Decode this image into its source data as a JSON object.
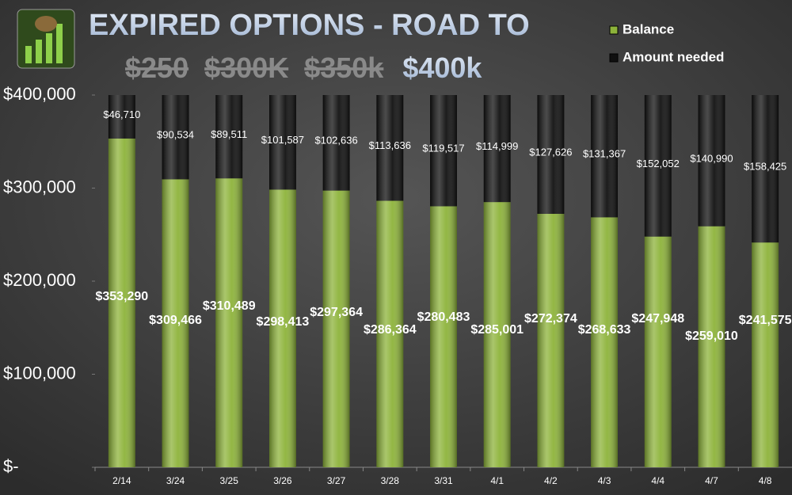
{
  "chart_data": {
    "type": "stacked_bar",
    "title": "EXPIRED OPTIONS - ROAD TO",
    "struck_targets": [
      "$250",
      "$300K",
      "$350k"
    ],
    "target": "$400k",
    "categories": [
      "2/14",
      "3/24",
      "3/25",
      "3/26",
      "3/27",
      "3/28",
      "3/31",
      "4/1",
      "4/2",
      "4/3",
      "4/4",
      "4/7",
      "4/8"
    ],
    "series": [
      {
        "name": "Balance",
        "color": "#8db33a",
        "values": [
          353290,
          309466,
          310489,
          298413,
          297364,
          286364,
          280483,
          285001,
          272374,
          268633,
          247948,
          259010,
          241575
        ],
        "value_labels": [
          "$353,290",
          "$309,466",
          "$310,489",
          "$298,413",
          "$297,364",
          "$286,364",
          "$280,483",
          "$285,001",
          "$272,374",
          "$268,633",
          "$247,948",
          "$259,010",
          "$241,575"
        ]
      },
      {
        "name": "Amount needed",
        "color": "#101010",
        "values": [
          46710,
          90534,
          89511,
          101587,
          102636,
          113636,
          119517,
          114999,
          127626,
          131367,
          152052,
          140990,
          158425
        ],
        "value_labels": [
          "$46,710",
          "$90,534",
          "$89,511",
          "$101,587",
          "$102,636",
          "$113,636",
          "$119,517",
          "$114,999",
          "$127,626",
          "$131,367",
          "$152,052",
          "$140,990",
          "$158,425"
        ]
      }
    ],
    "ylim": [
      0,
      400000
    ],
    "yticks": [
      {
        "value": 0,
        "label": "$-"
      },
      {
        "value": 100000,
        "label": "$100,000"
      },
      {
        "value": 200000,
        "label": "$200,000"
      },
      {
        "value": 300000,
        "label": "$300,000"
      },
      {
        "value": 400000,
        "label": "$400,000"
      }
    ],
    "legend": "top-right"
  }
}
